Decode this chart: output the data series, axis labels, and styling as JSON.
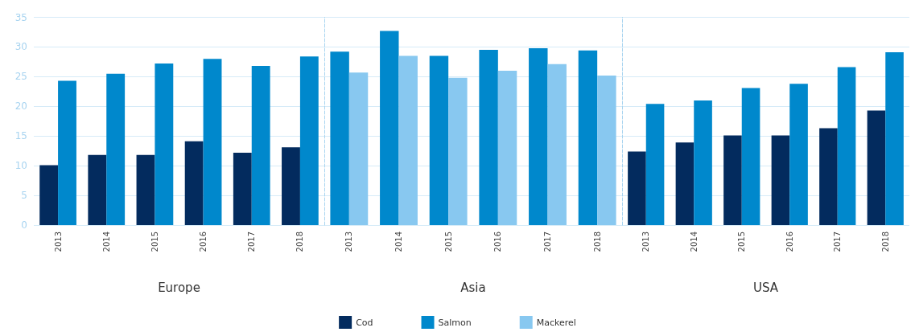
{
  "chart_data": [
    {
      "type": "bar",
      "xlabel": "Europe",
      "categories": [
        "2013",
        "2014",
        "2015",
        "2016",
        "2017",
        "2018"
      ],
      "series": [
        {
          "name": "Cod",
          "color": "#032b5e",
          "values": [
            10.1,
            11.8,
            11.8,
            14.1,
            12.2,
            13.1
          ]
        },
        {
          "name": "Salmon",
          "color": "#0088cc",
          "values": [
            24.3,
            25.5,
            27.2,
            28.0,
            26.8,
            28.4
          ]
        }
      ],
      "ylim": [
        0,
        35
      ],
      "yticks": [
        0,
        5,
        10,
        15,
        20,
        25,
        30,
        35
      ],
      "grid": "y",
      "legend": "bottom"
    },
    {
      "type": "bar",
      "xlabel": "Asia",
      "categories": [
        "2013",
        "2014",
        "2015",
        "2016",
        "2017",
        "2018"
      ],
      "series": [
        {
          "name": "Salmon",
          "color": "#0088cc",
          "values": [
            29.2,
            32.7,
            28.5,
            29.5,
            29.8,
            29.4
          ]
        },
        {
          "name": "Mackerel",
          "color": "#88c8f0",
          "values": [
            25.7,
            28.5,
            24.8,
            26.0,
            27.1,
            25.2
          ]
        }
      ],
      "ylim": [
        0,
        35
      ],
      "yticks": [
        0,
        5,
        10,
        15,
        20,
        25,
        30,
        35
      ],
      "grid": "y",
      "legend": "bottom",
      "tick_labels": "x"
    },
    {
      "type": "bar",
      "xlabel": "USA",
      "categories": [
        "2013",
        "2014",
        "2015",
        "2016",
        "2017",
        "2018"
      ],
      "series": [
        {
          "name": "Cod",
          "color": "#032b5e",
          "values": [
            12.4,
            13.9,
            15.1,
            15.1,
            16.3,
            19.3
          ]
        },
        {
          "name": "Salmon",
          "color": "#0088cc",
          "values": [
            20.4,
            21.0,
            23.1,
            23.8,
            26.6,
            29.1
          ]
        }
      ],
      "ylim": [
        0,
        35
      ],
      "yticks": [
        0,
        5,
        10,
        15,
        20,
        25,
        30,
        35
      ],
      "grid": "y",
      "legend": "bottom",
      "tick_labels": "x"
    }
  ]
}
